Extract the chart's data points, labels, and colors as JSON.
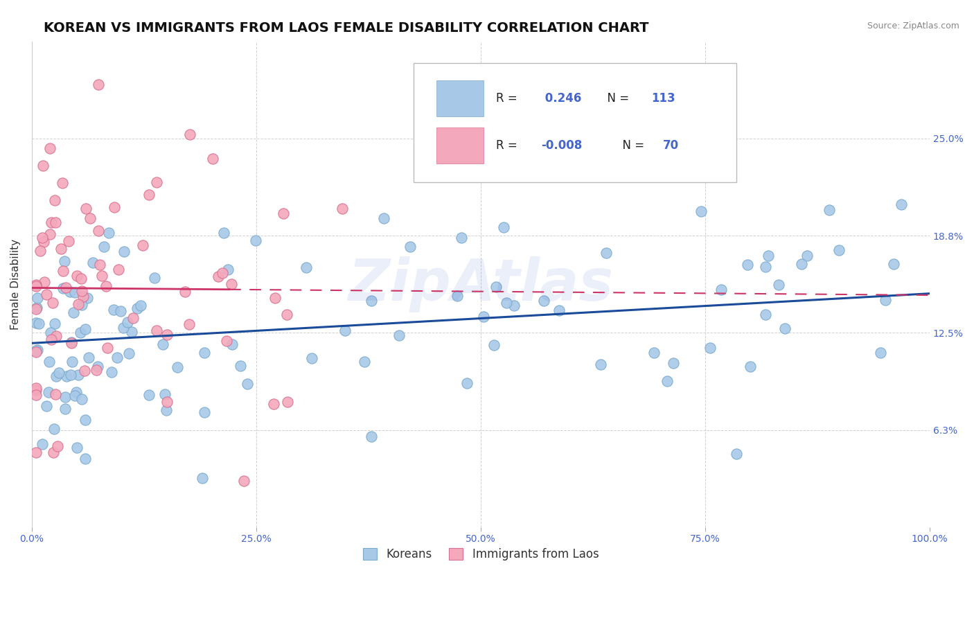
{
  "title": "KOREAN VS IMMIGRANTS FROM LAOS FEMALE DISABILITY CORRELATION CHART",
  "source": "Source: ZipAtlas.com",
  "ylabel": "Female Disability",
  "xlim": [
    0.0,
    1.0
  ],
  "ylim": [
    0.0,
    0.3125
  ],
  "ytick_vals": [
    0.0,
    0.0625,
    0.125,
    0.1875,
    0.25
  ],
  "ytick_labels": [
    "",
    "6.3%",
    "12.5%",
    "18.8%",
    "25.0%"
  ],
  "xtick_vals": [
    0.0,
    0.25,
    0.5,
    0.75,
    1.0
  ],
  "xtick_labels": [
    "0.0%",
    "25.0%",
    "50.0%",
    "75.0%",
    "100.0%"
  ],
  "korean_color": "#a8c8e8",
  "korean_edge_color": "#7aaace",
  "laos_color": "#f4a8bc",
  "laos_edge_color": "#d87090",
  "korean_r": 0.246,
  "korean_n": 113,
  "laos_r": -0.008,
  "laos_n": 70,
  "trend_korean_color": "#1a4a9a",
  "trend_laos_color": "#cc3366",
  "background_color": "#ffffff",
  "title_fontsize": 14,
  "axis_label_fontsize": 11,
  "tick_fontsize": 10,
  "tick_color": "#4466cc",
  "watermark": "ZipAtlas",
  "watermark_color": "#4466cc",
  "watermark_alpha": 0.1,
  "legend_label1": "Koreans",
  "legend_label2": "Immigrants from Laos",
  "legend_r1": "R =  0.246",
  "legend_n1": "N = 113",
  "legend_r2": "R = -0.008",
  "legend_n2": "N = 70",
  "legend_r_color": "#000000",
  "legend_val_color": "#4466cc"
}
